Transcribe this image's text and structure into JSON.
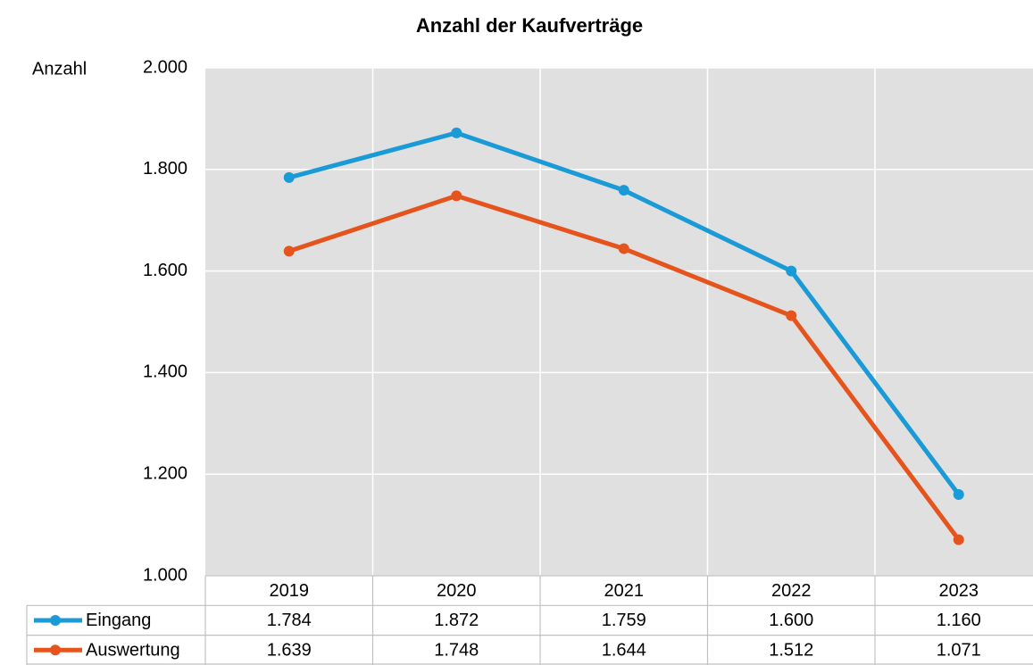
{
  "chart_data": {
    "type": "line",
    "title": "Anzahl der Kaufverträge",
    "y_label": "Anzahl",
    "categories": [
      "2019",
      "2020",
      "2021",
      "2022",
      "2023"
    ],
    "series": [
      {
        "name": "Eingang",
        "color": "#1a9ad6",
        "values": [
          1784,
          1872,
          1759,
          1600,
          1160
        ],
        "value_labels": [
          "1.784",
          "1.872",
          "1.759",
          "1.600",
          "1.160"
        ]
      },
      {
        "name": "Auswertung",
        "color": "#e5541d",
        "values": [
          1639,
          1748,
          1644,
          1512,
          1071
        ],
        "value_labels": [
          "1.639",
          "1.748",
          "1.644",
          "1.512",
          "1.071"
        ]
      }
    ],
    "ylim": [
      1000,
      2000
    ],
    "yticks": [
      {
        "value": 1000,
        "label": "1.000"
      },
      {
        "value": 1200,
        "label": "1.200"
      },
      {
        "value": 1400,
        "label": "1.400"
      },
      {
        "value": 1600,
        "label": "1.600"
      },
      {
        "value": 1800,
        "label": "1.800"
      },
      {
        "value": 2000,
        "label": "2.000"
      }
    ],
    "grid": true
  }
}
